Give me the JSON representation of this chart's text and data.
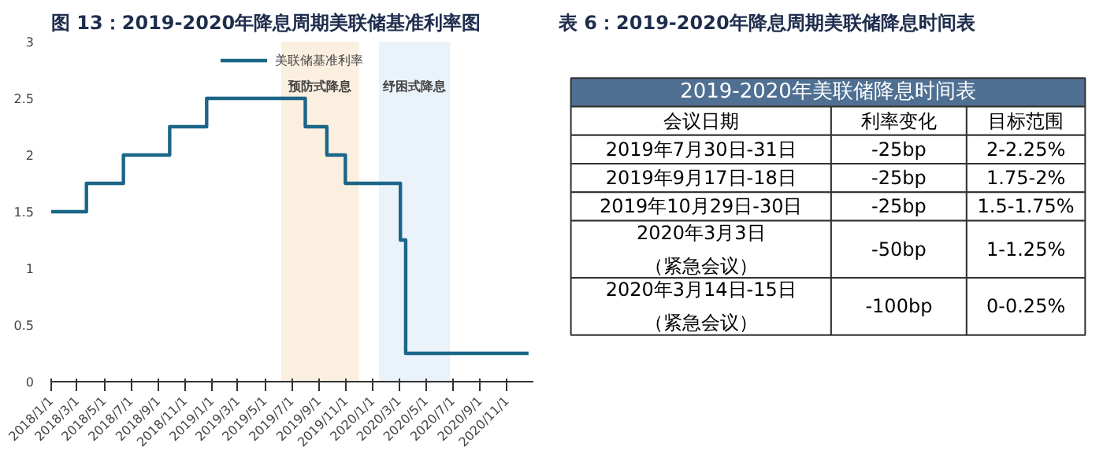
{
  "chart_data": [
    {
      "type": "step",
      "title": "图 13：2019-2020年降息周期美联储基准利率图",
      "x": [
        "2018-01-01",
        "2018-03-22",
        "2018-06-14",
        "2018-09-27",
        "2018-12-20",
        "2019-08-01",
        "2019-09-19",
        "2019-10-31",
        "2020-03-04",
        "2020-03-16",
        "2020-12-20"
      ],
      "series": [
        {
          "name": "美联储基准利率",
          "color": "#1b6688",
          "values": [
            1.5,
            1.75,
            2,
            2.25,
            2.5,
            2.25,
            2,
            1.75,
            1.25,
            0.25,
            0.25
          ]
        }
      ],
      "xlim": [
        "2018-01-01",
        "2020-12-31"
      ],
      "xticks": [
        {
          "value": "2018-01-01",
          "label": "2018/1/1"
        },
        {
          "value": "2018-03-01",
          "label": "2018/3/1"
        },
        {
          "value": "2018-05-01",
          "label": "2018/5/1"
        },
        {
          "value": "2018-07-01",
          "label": "2018/7/1"
        },
        {
          "value": "2018-09-01",
          "label": "2018/9/1"
        },
        {
          "value": "2018-11-01",
          "label": "2018/11/1"
        },
        {
          "value": "2019-01-01",
          "label": "2019/1/1"
        },
        {
          "value": "2019-03-01",
          "label": "2019/3/1"
        },
        {
          "value": "2019-05-01",
          "label": "2019/5/1"
        },
        {
          "value": "2019-07-01",
          "label": "2019/7/1"
        },
        {
          "value": "2019-09-01",
          "label": "2019/9/1"
        },
        {
          "value": "2019-11-01",
          "label": "2019/11/1"
        },
        {
          "value": "2020-01-01",
          "label": "2020/1/1"
        },
        {
          "value": "2020-03-01",
          "label": "2020/3/1"
        },
        {
          "value": "2020-05-01",
          "label": "2020/5/1"
        },
        {
          "value": "2020-07-01",
          "label": "2020/7/1"
        },
        {
          "value": "2020-09-01",
          "label": "2020/9/1"
        },
        {
          "value": "2020-11-01",
          "label": "2020/11/1"
        }
      ],
      "ylim": [
        0,
        3
      ],
      "yticks": [
        0,
        0.5,
        1,
        1.5,
        2,
        2.5,
        3
      ],
      "bands": [
        {
          "axis": "x",
          "from": "2019-06-07",
          "to": "2019-12-01",
          "label": "预防式降息",
          "color": "#fbefe0"
        },
        {
          "axis": "x",
          "from": "2020-01-15",
          "to": "2020-06-25",
          "label": "纾困式降息",
          "color": "#eaf2fa"
        }
      ],
      "grid": false,
      "legend": "top"
    },
    {
      "type": "other",
      "title": "表 6：2019-2020年降息周期美联储降息时间表",
      "annotations": [
        "2019-2020年美联储降息时间表",
        "会议日期",
        "利率变化",
        "目标范围",
        "2019年7月30日-31日",
        "-25bp",
        "2-2.25%",
        "2019年9月17日-18日",
        "-25bp",
        "1.75-2%",
        "2019年10月29日-30日",
        "-25bp",
        "1.5-1.75%",
        "2020年3月3日（紧急会议）",
        "-50bp",
        "1-1.25%",
        "2020年3月14日-15日（紧急会议）",
        "-100bp",
        "0-0.25%"
      ]
    }
  ]
}
